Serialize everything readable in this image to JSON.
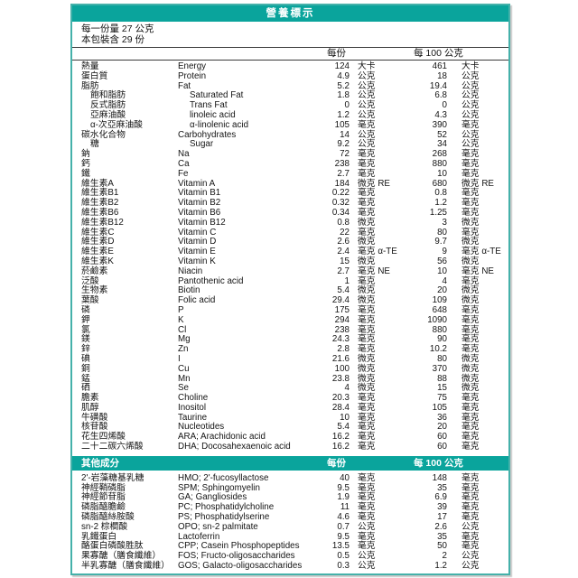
{
  "header": {
    "title": "營養標示"
  },
  "serving": {
    "serving_size": "每一份量 27 公克",
    "servings_per_package": "本包裝含 29 份"
  },
  "columns": {
    "per_serving": "每份",
    "per_100g": "每 100 公克"
  },
  "colors": {
    "band_teal": "#0aa49c",
    "border_teal": "#45b1aa",
    "rule_dark": "#3a3a3a"
  },
  "rows": [
    {
      "zh": "熱量",
      "en": "Energy",
      "v1": "124",
      "u1": "大卡",
      "v2": "461",
      "u2": "大卡",
      "indent": false
    },
    {
      "zh": "蛋白質",
      "en": "Protein",
      "v1": "4.9",
      "u1": "公克",
      "v2": "18",
      "u2": "公克",
      "indent": false
    },
    {
      "zh": "脂肪",
      "en": "Fat",
      "v1": "5.2",
      "u1": "公克",
      "v2": "19.4",
      "u2": "公克",
      "indent": false
    },
    {
      "zh": "飽和脂肪",
      "en": "Saturated Fat",
      "v1": "1.8",
      "u1": "公克",
      "v2": "6.8",
      "u2": "公克",
      "indent": true
    },
    {
      "zh": "反式脂肪",
      "en": "Trans Fat",
      "v1": "0",
      "u1": "公克",
      "v2": "0",
      "u2": "公克",
      "indent": true
    },
    {
      "zh": "亞麻油酸",
      "en": "linoleic acid",
      "v1": "1.2",
      "u1": "公克",
      "v2": "4.3",
      "u2": "公克",
      "indent": true
    },
    {
      "zh": "α-次亞麻油酸",
      "en": "α-linolenic acid",
      "v1": "105",
      "u1": "毫克",
      "v2": "390",
      "u2": "毫克",
      "indent": true
    },
    {
      "zh": "碳水化合物",
      "en": "Carbohydrates",
      "v1": "14",
      "u1": "公克",
      "v2": "52",
      "u2": "公克",
      "indent": false
    },
    {
      "zh": "糖",
      "en": "Sugar",
      "v1": "9.2",
      "u1": "公克",
      "v2": "34",
      "u2": "公克",
      "indent": true
    },
    {
      "zh": "鈉",
      "en": "Na",
      "v1": "72",
      "u1": "毫克",
      "v2": "268",
      "u2": "毫克",
      "indent": false
    },
    {
      "zh": "鈣",
      "en": "Ca",
      "v1": "238",
      "u1": "毫克",
      "v2": "880",
      "u2": "毫克",
      "indent": false
    },
    {
      "zh": "鐵",
      "en": "Fe",
      "v1": "2.7",
      "u1": "毫克",
      "v2": "10",
      "u2": "毫克",
      "indent": false
    },
    {
      "zh": "維生素A",
      "en": "Vitamin A",
      "v1": "184",
      "u1": "微克 RE",
      "v2": "680",
      "u2": "微克 RE",
      "indent": false
    },
    {
      "zh": "維生素B1",
      "en": "Vitamin B1",
      "v1": "0.22",
      "u1": "毫克",
      "v2": "0.8",
      "u2": "毫克",
      "indent": false
    },
    {
      "zh": "維生素B2",
      "en": "Vitamin B2",
      "v1": "0.32",
      "u1": "毫克",
      "v2": "1.2",
      "u2": "毫克",
      "indent": false
    },
    {
      "zh": "維生素B6",
      "en": "Vitamin B6",
      "v1": "0.34",
      "u1": "毫克",
      "v2": "1.25",
      "u2": "毫克",
      "indent": false
    },
    {
      "zh": "維生素B12",
      "en": "Vitamin B12",
      "v1": "0.8",
      "u1": "微克",
      "v2": "3",
      "u2": "微克",
      "indent": false
    },
    {
      "zh": "維生素C",
      "en": "Vitamin C",
      "v1": "22",
      "u1": "毫克",
      "v2": "80",
      "u2": "毫克",
      "indent": false
    },
    {
      "zh": "維生素D",
      "en": "Vitamin D",
      "v1": "2.6",
      "u1": "微克",
      "v2": "9.7",
      "u2": "微克",
      "indent": false
    },
    {
      "zh": "維生素E",
      "en": "Vitamin E",
      "v1": "2.4",
      "u1": "毫克 α-TE",
      "v2": "9",
      "u2": "毫克 α-TE",
      "indent": false
    },
    {
      "zh": "維生素K",
      "en": "Vitamin K",
      "v1": "15",
      "u1": "微克",
      "v2": "56",
      "u2": "微克",
      "indent": false
    },
    {
      "zh": "菸鹼素",
      "en": "Niacin",
      "v1": "2.7",
      "u1": "毫克 NE",
      "v2": "10",
      "u2": "毫克 NE",
      "indent": false
    },
    {
      "zh": "泛酸",
      "en": "Pantothenic acid",
      "v1": "1",
      "u1": "毫克",
      "v2": "4",
      "u2": "毫克",
      "indent": false
    },
    {
      "zh": "生物素",
      "en": "Biotin",
      "v1": "5.4",
      "u1": "微克",
      "v2": "20",
      "u2": "微克",
      "indent": false
    },
    {
      "zh": "葉酸",
      "en": "Folic acid",
      "v1": "29.4",
      "u1": "微克",
      "v2": "109",
      "u2": "微克",
      "indent": false
    },
    {
      "zh": "磷",
      "en": "P",
      "v1": "175",
      "u1": "毫克",
      "v2": "648",
      "u2": "毫克",
      "indent": false
    },
    {
      "zh": "鉀",
      "en": "K",
      "v1": "294",
      "u1": "毫克",
      "v2": "1090",
      "u2": "毫克",
      "indent": false
    },
    {
      "zh": "氯",
      "en": "Cl",
      "v1": "238",
      "u1": "毫克",
      "v2": "880",
      "u2": "毫克",
      "indent": false
    },
    {
      "zh": "鎂",
      "en": "Mg",
      "v1": "24.3",
      "u1": "毫克",
      "v2": "90",
      "u2": "毫克",
      "indent": false
    },
    {
      "zh": "鋅",
      "en": "Zn",
      "v1": "2.8",
      "u1": "毫克",
      "v2": "10.2",
      "u2": "毫克",
      "indent": false
    },
    {
      "zh": "碘",
      "en": "I",
      "v1": "21.6",
      "u1": "微克",
      "v2": "80",
      "u2": "微克",
      "indent": false
    },
    {
      "zh": "銅",
      "en": "Cu",
      "v1": "100",
      "u1": "微克",
      "v2": "370",
      "u2": "微克",
      "indent": false
    },
    {
      "zh": "錳",
      "en": "Mn",
      "v1": "23.8",
      "u1": "微克",
      "v2": "88",
      "u2": "微克",
      "indent": false
    },
    {
      "zh": "硒",
      "en": "Se",
      "v1": "4",
      "u1": "微克",
      "v2": "15",
      "u2": "微克",
      "indent": false
    },
    {
      "zh": "膽素",
      "en": "Choline",
      "v1": "20.3",
      "u1": "毫克",
      "v2": "75",
      "u2": "毫克",
      "indent": false
    },
    {
      "zh": "肌醇",
      "en": "Inositol",
      "v1": "28.4",
      "u1": "毫克",
      "v2": "105",
      "u2": "毫克",
      "indent": false
    },
    {
      "zh": "牛磺酸",
      "en": "Taurine",
      "v1": "10",
      "u1": "毫克",
      "v2": "36",
      "u2": "毫克",
      "indent": false
    },
    {
      "zh": "核苷酸",
      "en": "Nucleotides",
      "v1": "5.4",
      "u1": "毫克",
      "v2": "20",
      "u2": "毫克",
      "indent": false
    },
    {
      "zh": "花生四烯酸",
      "en": "ARA; Arachidonic acid",
      "v1": "16.2",
      "u1": "毫克",
      "v2": "60",
      "u2": "毫克",
      "indent": false
    },
    {
      "zh": "二十二碳六烯酸",
      "en": "DHA; Docosahexaenoic acid",
      "v1": "16.2",
      "u1": "毫克",
      "v2": "60",
      "u2": "毫克",
      "indent": false
    }
  ],
  "other_section": {
    "title": "其他成分",
    "per_serving": "每份",
    "per_100g": "每 100 公克"
  },
  "other_rows": [
    {
      "zh": "2'-岩藻糖基乳糖",
      "en": "HMO; 2'-fucosyllactose",
      "v1": "40",
      "u1": "毫克",
      "v2": "148",
      "u2": "毫克",
      "indent": false
    },
    {
      "zh": "神經鞘磷脂",
      "en": "SPM; Sphingomyelin",
      "v1": "9.5",
      "u1": "毫克",
      "v2": "35",
      "u2": "毫克",
      "indent": false
    },
    {
      "zh": "神經節苷脂",
      "en": "GA; Gangliosides",
      "v1": "1.9",
      "u1": "毫克",
      "v2": "6.9",
      "u2": "毫克",
      "indent": false
    },
    {
      "zh": "磷脂醯膽鹼",
      "en": "PC; Phosphatidylcholine",
      "v1": "11",
      "u1": "毫克",
      "v2": "39",
      "u2": "毫克",
      "indent": false
    },
    {
      "zh": "磷脂醯絲胺酸",
      "en": "PS; Phosphatidylserine",
      "v1": "4.6",
      "u1": "毫克",
      "v2": "17",
      "u2": "毫克",
      "indent": false
    },
    {
      "zh": "sn-2 棕櫚酸",
      "en": "OPO; sn-2 palmitate",
      "v1": "0.7",
      "u1": "公克",
      "v2": "2.6",
      "u2": "公克",
      "indent": false
    },
    {
      "zh": "乳鐵蛋白",
      "en": "Lactoferrin",
      "v1": "9.5",
      "u1": "毫克",
      "v2": "35",
      "u2": "毫克",
      "indent": false
    },
    {
      "zh": "酪蛋白磷酸胜肽",
      "en": "CPP; Casein Phosphopeptides",
      "v1": "13.5",
      "u1": "毫克",
      "v2": "50",
      "u2": "毫克",
      "indent": false
    },
    {
      "zh": "果寡醣（膳食纖維）",
      "en": "FOS; Fructo-oligosaccharides",
      "v1": "0.5",
      "u1": "公克",
      "v2": "2",
      "u2": "公克",
      "indent": false
    },
    {
      "zh": "半乳寡醣（膳食纖維）",
      "en": "GOS; Galacto-oligosaccharides",
      "v1": "0.3",
      "u1": "公克",
      "v2": "1.2",
      "u2": "公克",
      "indent": false
    }
  ]
}
